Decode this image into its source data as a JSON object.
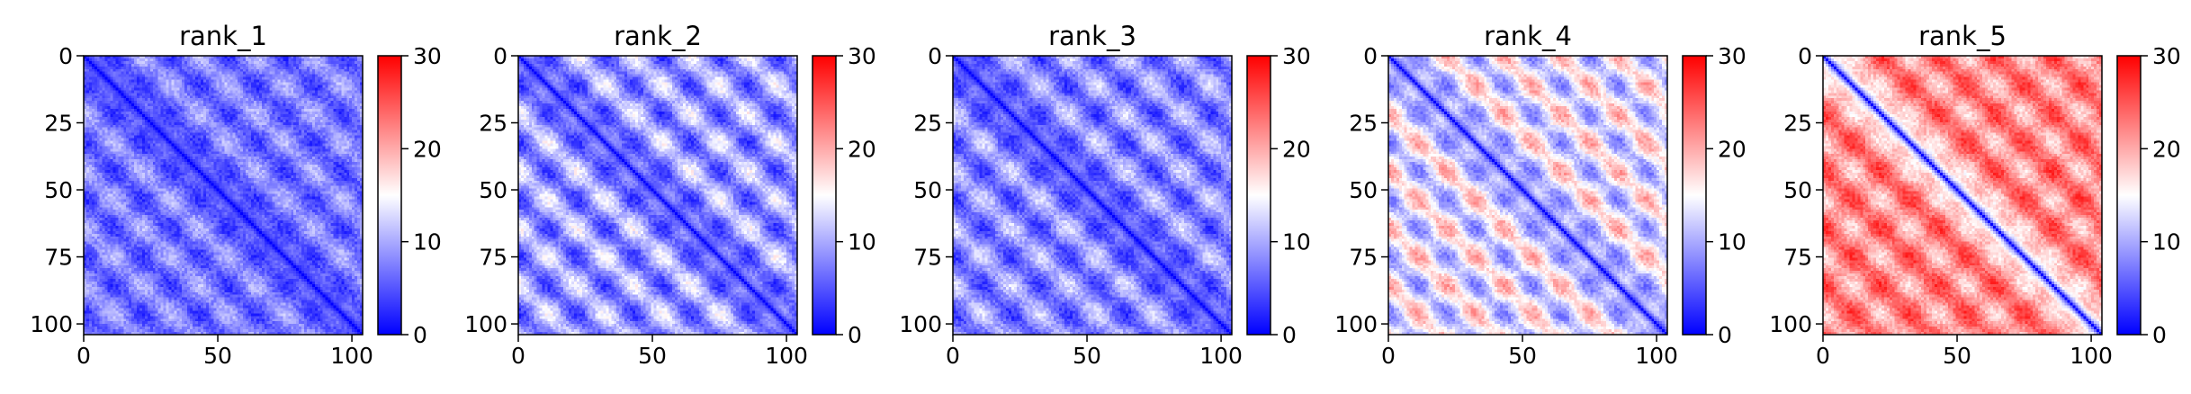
{
  "chart_data": [
    {
      "type": "heatmap",
      "title": "rank_1",
      "xlim": [
        0,
        104
      ],
      "ylim": [
        104,
        0
      ],
      "xticks": [
        0,
        50,
        100
      ],
      "yticks": [
        0,
        25,
        50,
        75,
        100
      ],
      "colorbar": {
        "min": 0,
        "max": 30,
        "ticks": [
          0,
          10,
          20,
          30
        ],
        "colors": [
          "#0000ff",
          "#ffffff",
          "#ff0000"
        ]
      },
      "n": 105,
      "diagonal_value": 0,
      "mean_value": 7,
      "period": 21.5,
      "stripe_strength": 4,
      "seed": 11
    },
    {
      "type": "heatmap",
      "title": "rank_2",
      "xlim": [
        0,
        104
      ],
      "ylim": [
        104,
        0
      ],
      "xticks": [
        0,
        50,
        100
      ],
      "yticks": [
        0,
        25,
        50,
        75,
        100
      ],
      "colorbar": {
        "min": 0,
        "max": 30,
        "ticks": [
          0,
          10,
          20,
          30
        ],
        "colors": [
          "#0000ff",
          "#ffffff",
          "#ff0000"
        ]
      },
      "n": 105,
      "diagonal_value": 0,
      "mean_value": 9,
      "period": 21.5,
      "stripe_strength": 6,
      "seed": 23
    },
    {
      "type": "heatmap",
      "title": "rank_3",
      "xlim": [
        0,
        104
      ],
      "ylim": [
        104,
        0
      ],
      "xticks": [
        0,
        50,
        100
      ],
      "yticks": [
        0,
        25,
        50,
        75,
        100
      ],
      "colorbar": {
        "min": 0,
        "max": 30,
        "ticks": [
          0,
          10,
          20,
          30
        ],
        "colors": [
          "#0000ff",
          "#ffffff",
          "#ff0000"
        ]
      },
      "n": 105,
      "diagonal_value": 0,
      "mean_value": 8,
      "period": 21.5,
      "stripe_strength": 5,
      "seed": 37
    },
    {
      "type": "heatmap",
      "title": "rank_4",
      "xlim": [
        0,
        104
      ],
      "ylim": [
        104,
        0
      ],
      "xticks": [
        0,
        50,
        100
      ],
      "yticks": [
        0,
        25,
        50,
        75,
        100
      ],
      "colorbar": {
        "min": 0,
        "max": 30,
        "ticks": [
          0,
          10,
          20,
          30
        ],
        "colors": [
          "#0000ff",
          "#ffffff",
          "#ff0000"
        ]
      },
      "n": 105,
      "diagonal_value": 0,
      "mean_value": 14,
      "period": 21.5,
      "stripe_strength": 7,
      "seed": 41
    },
    {
      "type": "heatmap",
      "title": "rank_5",
      "xlim": [
        0,
        104
      ],
      "ylim": [
        104,
        0
      ],
      "xticks": [
        0,
        50,
        100
      ],
      "yticks": [
        0,
        25,
        50,
        75,
        100
      ],
      "colorbar": {
        "min": 0,
        "max": 30,
        "ticks": [
          0,
          10,
          20,
          30
        ],
        "colors": [
          "#0000ff",
          "#ffffff",
          "#ff0000"
        ]
      },
      "n": 105,
      "diagonal_value": 0,
      "mean_value": 22,
      "period": 21.5,
      "stripe_strength": 5,
      "seed": 53
    }
  ]
}
